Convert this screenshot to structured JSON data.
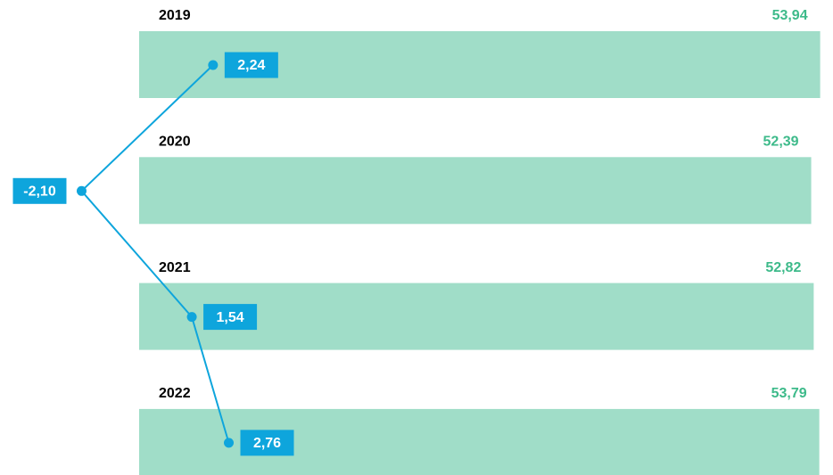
{
  "chart_data": {
    "type": "bar",
    "orientation": "horizontal",
    "categories": [
      "2019",
      "2020",
      "2021",
      "2022"
    ],
    "series": [
      {
        "type": "bar",
        "color": "#a0ddc8",
        "label_color": "#3dba8a",
        "values": [
          53.94,
          52.39,
          52.82,
          53.79
        ],
        "value_labels": [
          "53,94",
          "52,39",
          "52,82",
          "53,79"
        ]
      },
      {
        "type": "line",
        "axis": "x2",
        "color": "#0ea5dc",
        "values": [
          2.24,
          -2.1,
          1.54,
          2.76
        ],
        "value_labels": [
          "2,24",
          "-2,10",
          "1,54",
          "2,76"
        ]
      }
    ],
    "xlim": [
      -64,
      54
    ],
    "x2lim": [
      -0.2,
      22.3
    ]
  }
}
